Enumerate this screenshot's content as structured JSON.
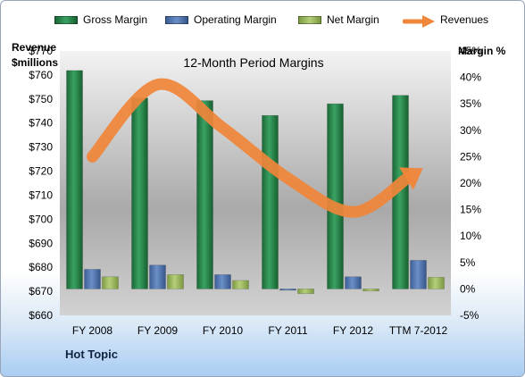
{
  "chart_data": {
    "type": "bar",
    "title": "12-Month Period Margins",
    "categories": [
      "FY 2008",
      "FY 2009",
      "FY 2010",
      "FY 2011",
      "FY 2012",
      "TTM 7-2012"
    ],
    "series": [
      {
        "name": "Gross Margin",
        "axis": "right",
        "type": "bar",
        "color": "#237a45",
        "values": [
          41.3,
          36.1,
          35.6,
          32.8,
          35.0,
          36.6
        ]
      },
      {
        "name": "Operating Margin",
        "axis": "right",
        "type": "bar",
        "color": "#4a6fa8",
        "values": [
          3.7,
          4.5,
          2.7,
          0.0,
          2.3,
          5.4
        ]
      },
      {
        "name": "Net Margin",
        "axis": "right",
        "type": "bar",
        "color": "#93b356",
        "values": [
          2.3,
          2.7,
          1.6,
          -0.9,
          -0.4,
          2.2
        ]
      },
      {
        "name": "Revenues",
        "axis": "left",
        "type": "line",
        "color": "#f0863a",
        "values": [
          726,
          756,
          738,
          717,
          703,
          720
        ]
      }
    ],
    "ylabel_left": "Revenue\n$millions",
    "ylabel_right": "Margin %",
    "y_left": {
      "min": 660,
      "max": 770,
      "step": 10,
      "prefix": "$"
    },
    "y_right": {
      "min": -5,
      "max": 45,
      "step": 5,
      "suffix": "%"
    },
    "legend_position": "top",
    "grid": false,
    "footer": "Hot Topic"
  },
  "ui": {
    "legend": [
      "Gross Margin",
      "Operating Margin",
      "Net Margin",
      "Revenues"
    ],
    "left_title_line1": "Revenue",
    "left_title_line2": "$millions",
    "right_title": "Margin %",
    "footer": "Hot Topic"
  }
}
